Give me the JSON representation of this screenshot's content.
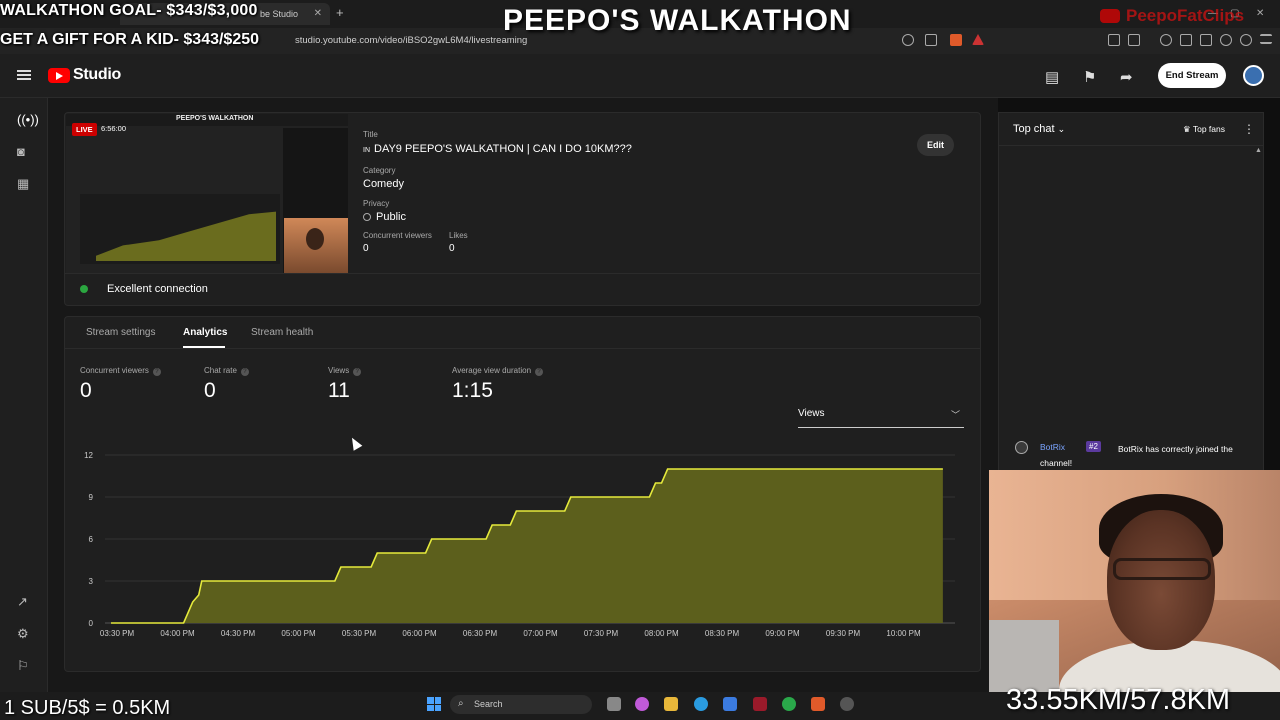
{
  "overlay": {
    "goal": "WALKATHON GOAL- $343/$3,000",
    "gift": "GET A GIFT FOR A KID- $343/$250",
    "title": "PEEPO'S WALKATHON",
    "channel": "PeepoFatClips",
    "sub_rate": "1 SUB/5$ = 0.5KM",
    "distance": "33.55KM/57.8KM"
  },
  "browser": {
    "tab_title": "be Studio",
    "url": "studio.youtube.com/video/iBSO2gwL6M4/livestreaming"
  },
  "header": {
    "logo_text": "Studio",
    "end_stream_label": "End Stream"
  },
  "stream": {
    "live_label": "LIVE",
    "live_time": "6:56:00",
    "thumb_title": "PEEPO'S WALKATHON",
    "title_label": "Title",
    "title_value": "DAY9 PEEPO'S WALKATHON | CAN I DO 10KM???",
    "title_prefix": "IN",
    "edit_label": "Edit",
    "category_label": "Category",
    "category_value": "Comedy",
    "privacy_label": "Privacy",
    "privacy_value": "Public",
    "concurrent_label": "Concurrent viewers",
    "concurrent_value": "0",
    "likes_label": "Likes",
    "likes_value": "0",
    "connection": "Excellent connection",
    "connection_color": "#2ba640"
  },
  "analytics": {
    "tabs": [
      {
        "label": "Stream settings"
      },
      {
        "label": "Analytics"
      },
      {
        "label": "Stream health"
      }
    ],
    "metrics": [
      {
        "label": "Concurrent viewers",
        "value": "0"
      },
      {
        "label": "Chat rate",
        "value": "0"
      },
      {
        "label": "Views",
        "value": "11"
      },
      {
        "label": "Average view duration",
        "value": "1:15"
      }
    ],
    "dropdown_value": "Views"
  },
  "chart_data": {
    "type": "area",
    "x": [
      "03:30 PM",
      "04:00 PM",
      "04:30 PM",
      "05:00 PM",
      "05:30 PM",
      "06:00 PM",
      "06:30 PM",
      "07:00 PM",
      "07:30 PM",
      "08:00 PM",
      "08:30 PM",
      "09:00 PM",
      "09:30 PM",
      "10:00 PM"
    ],
    "yticks": [
      "0",
      "3",
      "6",
      "9",
      "12"
    ],
    "ylim": [
      0,
      12
    ],
    "series": [
      {
        "color": "#e5ea3c",
        "fill": "#5c5f1c",
        "points": [
          [
            0,
            0
          ],
          [
            1.2,
            0
          ],
          [
            1.35,
            1.5
          ],
          [
            1.45,
            2
          ],
          [
            1.5,
            3
          ],
          [
            3.7,
            3
          ],
          [
            3.8,
            4
          ],
          [
            4.3,
            4
          ],
          [
            4.4,
            5
          ],
          [
            5.2,
            5
          ],
          [
            5.3,
            6
          ],
          [
            6.2,
            6
          ],
          [
            6.3,
            7
          ],
          [
            6.6,
            7
          ],
          [
            6.7,
            8
          ],
          [
            7.5,
            8
          ],
          [
            7.6,
            9
          ],
          [
            8.9,
            9
          ],
          [
            9.0,
            10
          ],
          [
            9.1,
            10
          ],
          [
            9.2,
            11
          ],
          [
            13.75,
            11
          ]
        ]
      }
    ],
    "grid": true,
    "legend": "none"
  },
  "chat": {
    "title": "Top chat",
    "top_fans_label": "Top fans",
    "messages": [
      {
        "author": "BotRix",
        "badge": "#2",
        "text": "BotRix has correctly joined the channel!"
      }
    ]
  },
  "taskbar": {
    "search_placeholder": "Search"
  }
}
